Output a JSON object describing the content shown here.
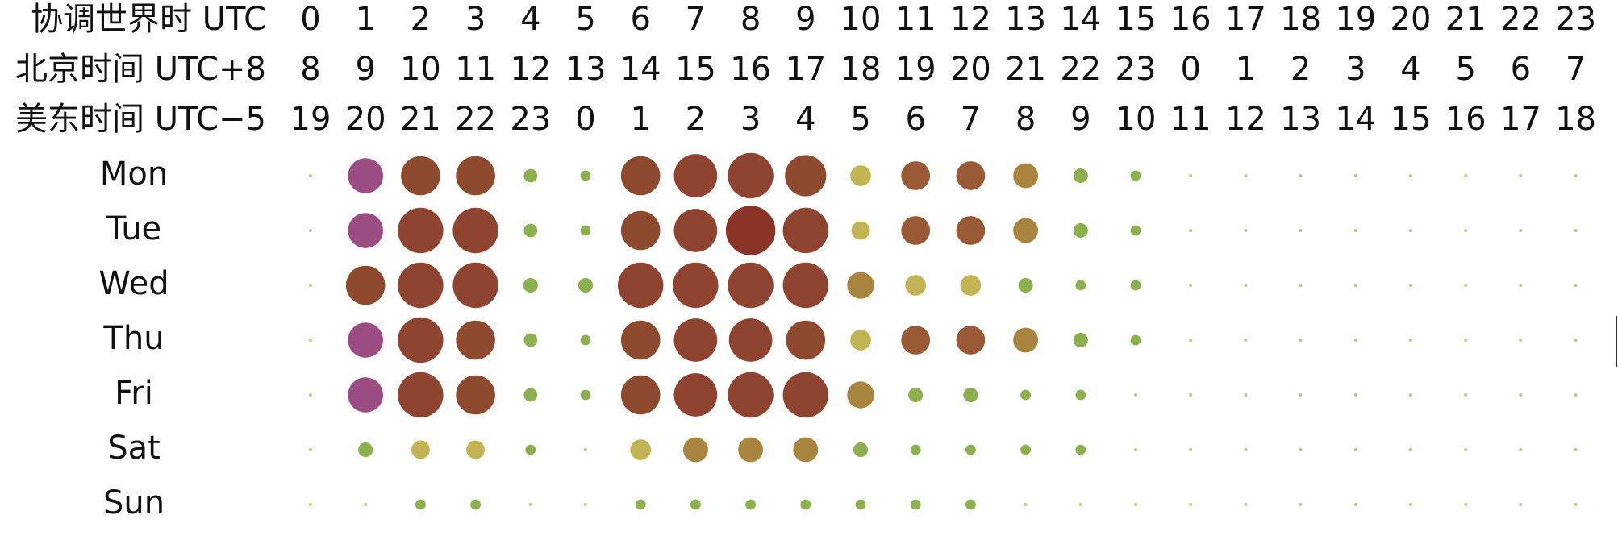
{
  "chart_data": {
    "type": "punchcard",
    "timezones": [
      {
        "label": "协调世界时 UTC",
        "hours": [
          0,
          1,
          2,
          3,
          4,
          5,
          6,
          7,
          8,
          9,
          10,
          11,
          12,
          13,
          14,
          15,
          16,
          17,
          18,
          19,
          20,
          21,
          22,
          23
        ]
      },
      {
        "label": "北京时间 UTC+8",
        "hours": [
          8,
          9,
          10,
          11,
          12,
          13,
          14,
          15,
          16,
          17,
          18,
          19,
          20,
          21,
          22,
          23,
          0,
          1,
          2,
          3,
          4,
          5,
          6,
          7
        ]
      },
      {
        "label": "美东时间 UTC−5",
        "hours": [
          19,
          20,
          21,
          22,
          23,
          0,
          1,
          2,
          3,
          4,
          5,
          6,
          7,
          8,
          9,
          10,
          11,
          12,
          13,
          14,
          15,
          16,
          17,
          18
        ]
      }
    ],
    "series": [
      {
        "name": "Mon",
        "values": [
          1,
          116,
          144,
          144,
          17,
          10,
          144,
          176,
          194,
          160,
          40,
          78,
          78,
          58,
          20,
          10,
          1,
          1,
          1,
          1,
          1,
          1,
          1,
          1
        ],
        "colors": [
          "#b9c98a",
          "#9b4c82",
          "#8e4a2e",
          "#8e4a2e",
          "#8db04f",
          "#8db04f",
          "#8e4a2e",
          "#8e4430",
          "#8e4430",
          "#8e4a2e",
          "#c2b454",
          "#9a5a35",
          "#9a5a35",
          "#a8843f",
          "#8db04f",
          "#8db04f",
          "#b9c98a",
          "#b9c98a",
          "#b9c98a",
          "#b9c98a",
          "#b9c98a",
          "#b9c98a",
          "#b9c98a",
          "#b9c98a"
        ]
      },
      {
        "name": "Tue",
        "values": [
          1,
          116,
          194,
          194,
          17,
          10,
          144,
          176,
          230,
          194,
          32,
          78,
          78,
          58,
          20,
          10,
          1,
          1,
          1,
          1,
          1,
          1,
          1,
          1
        ],
        "colors": [
          "#b9c98a",
          "#9b4c82",
          "#8e4430",
          "#8e4430",
          "#8db04f",
          "#8db04f",
          "#8e4a2e",
          "#8e4430",
          "#8a3428",
          "#8e4430",
          "#c2b454",
          "#9a5a35",
          "#9a5a35",
          "#a8843f",
          "#8db04f",
          "#8db04f",
          "#b9c98a",
          "#b9c98a",
          "#b9c98a",
          "#b9c98a",
          "#b9c98a",
          "#b9c98a",
          "#b9c98a",
          "#b9c98a"
        ]
      },
      {
        "name": "Wed",
        "values": [
          1,
          144,
          194,
          194,
          20,
          20,
          194,
          194,
          194,
          194,
          68,
          40,
          40,
          20,
          10,
          10,
          1,
          1,
          1,
          1,
          1,
          1,
          1,
          1
        ],
        "colors": [
          "#b9c98a",
          "#8e4a2e",
          "#8e4430",
          "#8e4430",
          "#8db04f",
          "#8db04f",
          "#8e4430",
          "#8e4430",
          "#8e4430",
          "#8e4430",
          "#a8843f",
          "#c2b454",
          "#c2b454",
          "#8db04f",
          "#8db04f",
          "#8db04f",
          "#b9c98a",
          "#b9c98a",
          "#b9c98a",
          "#b9c98a",
          "#b9c98a",
          "#b9c98a",
          "#b9c98a",
          "#b9c98a"
        ]
      },
      {
        "name": "Thu",
        "values": [
          1,
          116,
          194,
          144,
          17,
          10,
          144,
          176,
          176,
          144,
          40,
          78,
          78,
          58,
          20,
          10,
          1,
          1,
          1,
          1,
          1,
          1,
          1,
          1
        ],
        "colors": [
          "#b9c98a",
          "#9b4c82",
          "#8e4430",
          "#8e4a2e",
          "#8db04f",
          "#8db04f",
          "#8e4a2e",
          "#8e4430",
          "#8e4430",
          "#8e4a2e",
          "#c2b454",
          "#9a5a35",
          "#9a5a35",
          "#a8843f",
          "#8db04f",
          "#8db04f",
          "#b9c98a",
          "#b9c98a",
          "#b9c98a",
          "#b9c98a",
          "#b9c98a",
          "#b9c98a",
          "#b9c98a",
          "#b9c98a"
        ]
      },
      {
        "name": "Fri",
        "values": [
          1,
          116,
          194,
          144,
          17,
          10,
          144,
          176,
          194,
          194,
          68,
          20,
          20,
          10,
          10,
          1,
          1,
          1,
          1,
          1,
          1,
          1,
          1,
          1
        ],
        "colors": [
          "#b9c98a",
          "#9b4c82",
          "#8e4430",
          "#8e4a2e",
          "#8db04f",
          "#8db04f",
          "#8e4a2e",
          "#8e4430",
          "#8e4430",
          "#8e4430",
          "#a8843f",
          "#8db04f",
          "#8db04f",
          "#8db04f",
          "#8db04f",
          "#b9c98a",
          "#b9c98a",
          "#b9c98a",
          "#b9c98a",
          "#b9c98a",
          "#b9c98a",
          "#b9c98a",
          "#b9c98a",
          "#b9c98a"
        ]
      },
      {
        "name": "Sat",
        "values": [
          1,
          20,
          32,
          32,
          10,
          1,
          40,
          58,
          58,
          58,
          20,
          10,
          10,
          10,
          10,
          1,
          1,
          1,
          1,
          1,
          1,
          1,
          1,
          1
        ],
        "colors": [
          "#b9c98a",
          "#8db04f",
          "#c2b454",
          "#c2b454",
          "#8db04f",
          "#b9c98a",
          "#c2b454",
          "#a8843f",
          "#a8843f",
          "#a8843f",
          "#8db04f",
          "#8db04f",
          "#8db04f",
          "#8db04f",
          "#8db04f",
          "#b9c98a",
          "#b9c98a",
          "#b9c98a",
          "#b9c98a",
          "#b9c98a",
          "#b9c98a",
          "#b9c98a",
          "#b9c98a",
          "#b9c98a"
        ]
      },
      {
        "name": "Sun",
        "values": [
          1,
          1,
          10,
          10,
          1,
          1,
          10,
          10,
          10,
          10,
          10,
          10,
          10,
          1,
          1,
          1,
          1,
          1,
          1,
          1,
          1,
          1,
          1,
          1
        ],
        "colors": [
          "#b9c98a",
          "#b9c98a",
          "#8db04f",
          "#8db04f",
          "#b9c98a",
          "#b9c98a",
          "#8db04f",
          "#8db04f",
          "#8db04f",
          "#8db04f",
          "#8db04f",
          "#8db04f",
          "#8db04f",
          "#b9c98a",
          "#b9c98a",
          "#b9c98a",
          "#b9c98a",
          "#b9c98a",
          "#b9c98a",
          "#b9c98a",
          "#b9c98a",
          "#b9c98a",
          "#b9c98a",
          "#b9c98a"
        ]
      }
    ]
  }
}
